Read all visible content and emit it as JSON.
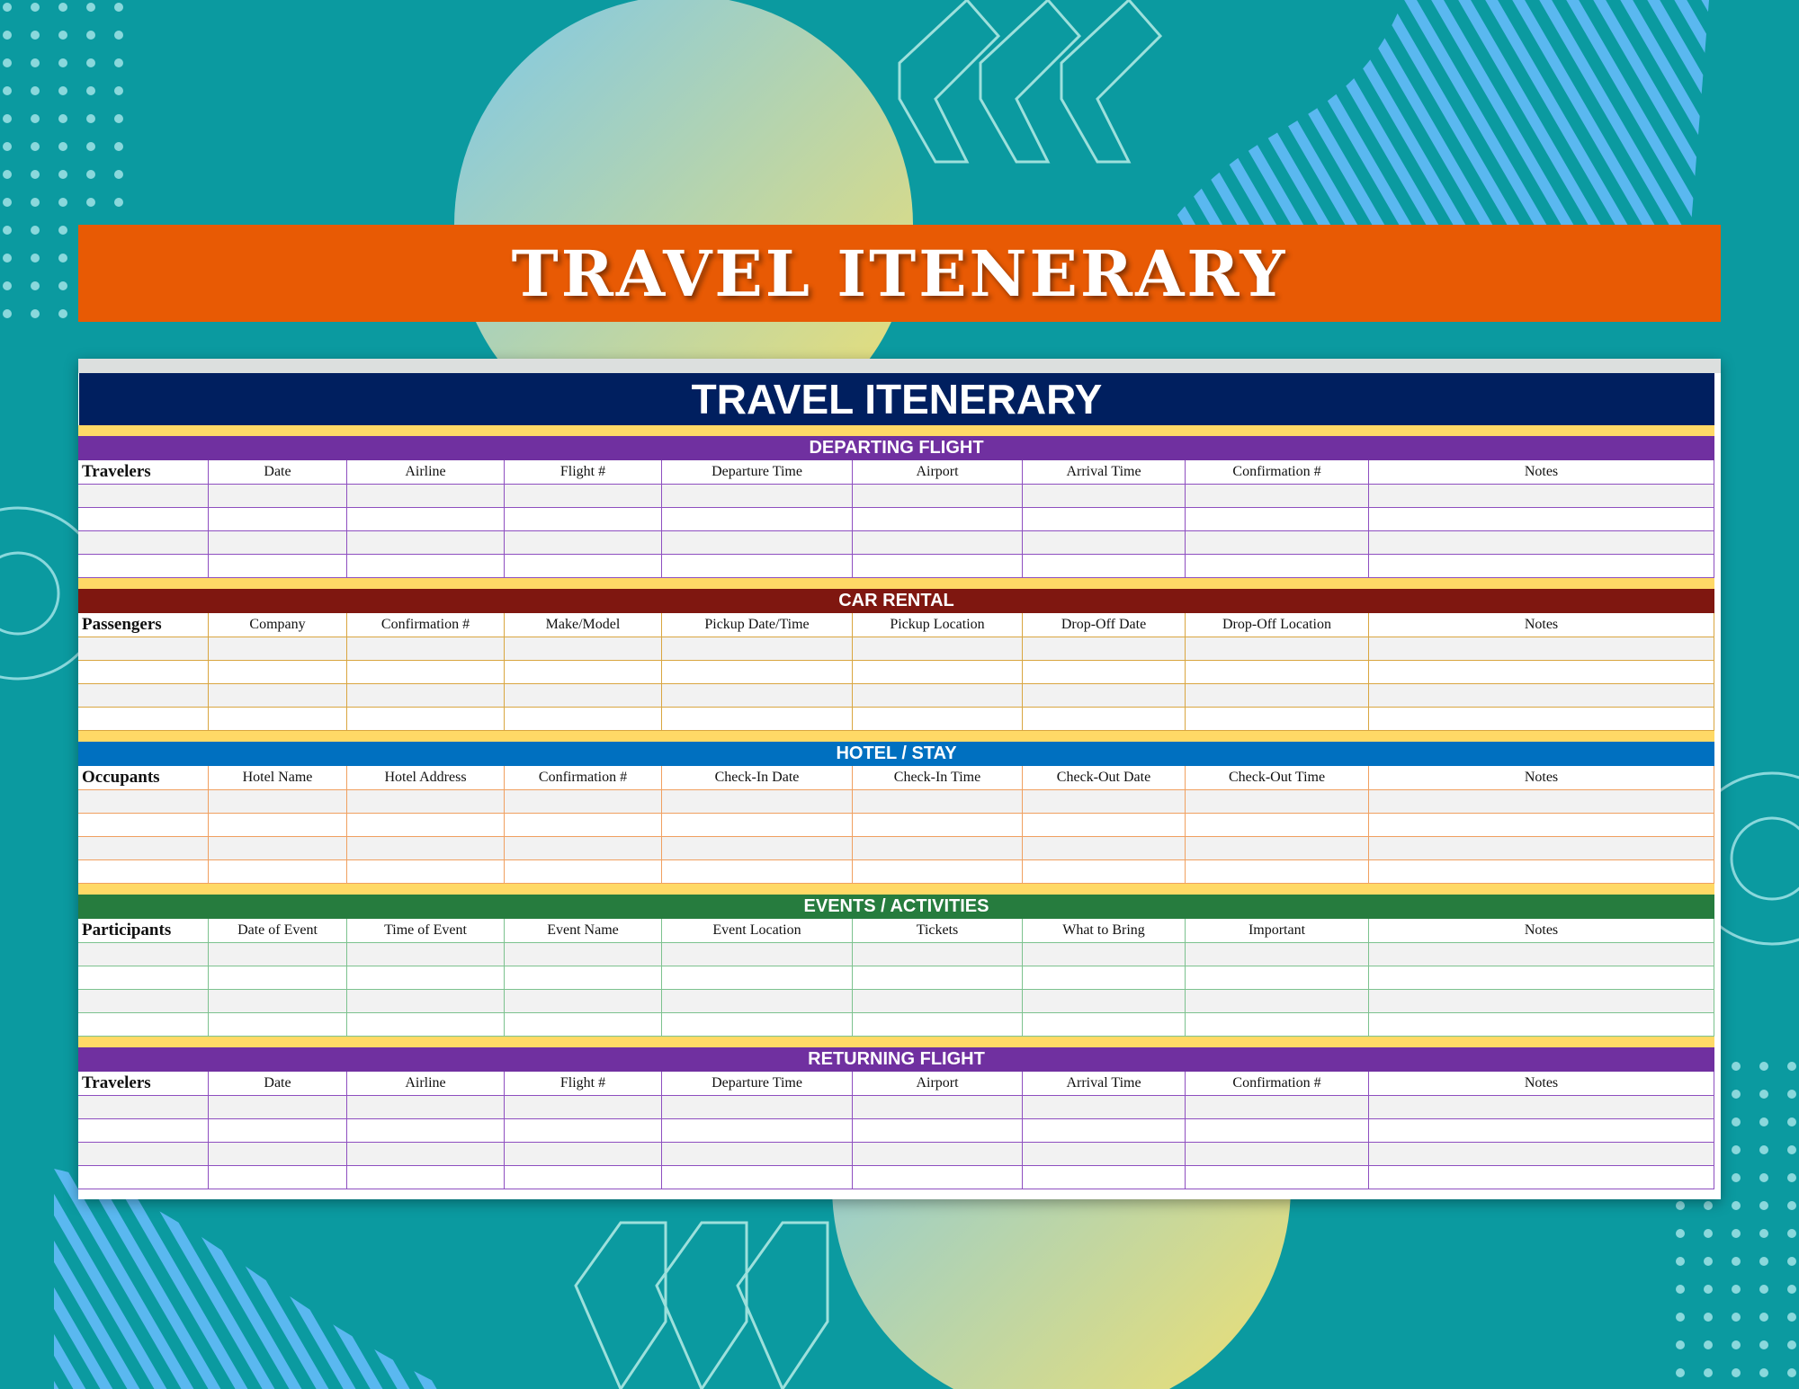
{
  "banner_title": "TRAVEL ITENERARY",
  "sheet_title": "TRAVEL ITENERARY",
  "colors": {
    "background": "#0b9aa0",
    "banner": "#e85a04",
    "title_bar": "#001f5f",
    "separator": "#ffd966"
  },
  "sections": [
    {
      "title": "DEPARTING FLIGHT",
      "color": "#7030a0",
      "border": "#8e4fc0",
      "columns": [
        "Travelers",
        "Date",
        "Airline",
        "Flight #",
        "Departure Time",
        "Airport",
        "Arrival Time",
        "Confirmation #",
        "Notes"
      ]
    },
    {
      "title": "CAR RENTAL",
      "color": "#7f1710",
      "border": "#d9a640",
      "columns": [
        "Passengers",
        "Company",
        "Confirmation #",
        "Make/Model",
        "Pickup Date/Time",
        "Pickup Location",
        "Drop-Off Date",
        "Drop-Off Location",
        "Notes"
      ]
    },
    {
      "title": "HOTEL / STAY",
      "color": "#0070c0",
      "border": "#f0a060",
      "columns": [
        "Occupants",
        "Hotel Name",
        "Hotel Address",
        "Confirmation #",
        "Check-In Date",
        "Check-In Time",
        "Check-Out Date",
        "Check-Out Time",
        "Notes"
      ]
    },
    {
      "title": "EVENTS / ACTIVITIES",
      "color": "#267c3e",
      "border": "#7cc28e",
      "columns": [
        "Participants",
        "Date of Event",
        "Time of Event",
        "Event Name",
        "Event Location",
        "Tickets",
        "What to Bring",
        "Important",
        "Notes"
      ]
    },
    {
      "title": "RETURNING FLIGHT",
      "color": "#7030a0",
      "border": "#8e4fc0",
      "columns": [
        "Travelers",
        "Date",
        "Airline",
        "Flight #",
        "Departure Time",
        "Airport",
        "Arrival Time",
        "Confirmation #",
        "Notes"
      ]
    }
  ]
}
